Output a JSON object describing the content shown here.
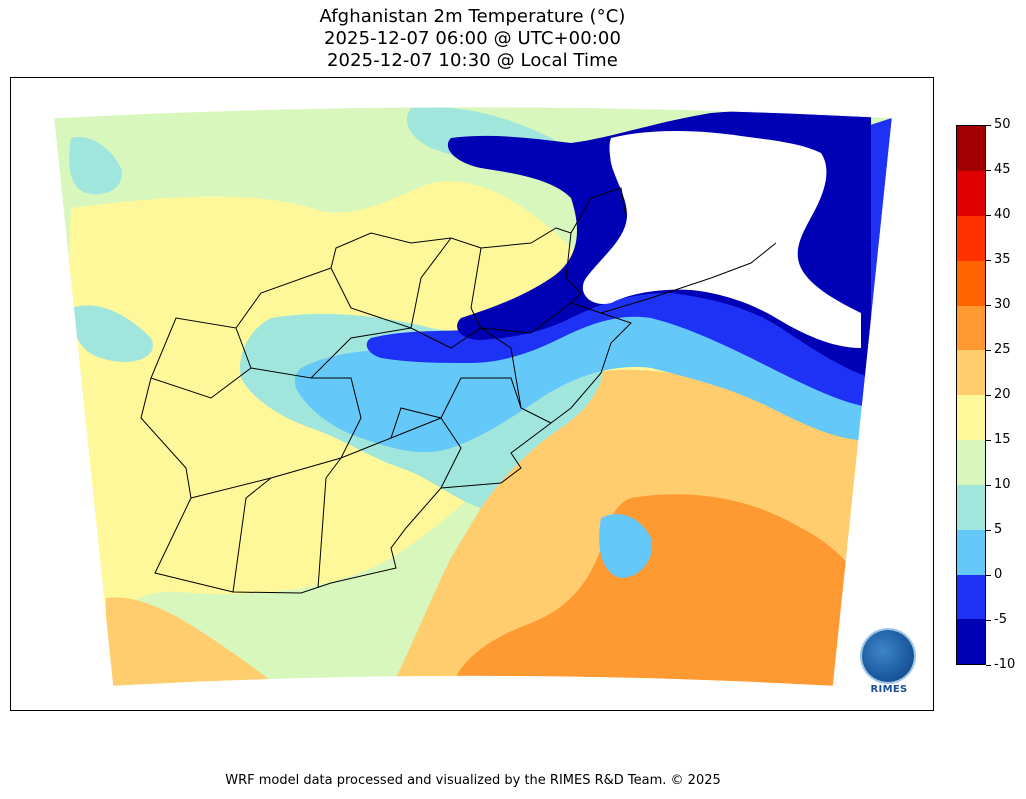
{
  "title": {
    "line1": "Afghanistan 2m Temperature (°C)",
    "line2": "2025-12-07 06:00 @ UTC+00:00",
    "line3": "2025-12-07 10:30 @ Local Time"
  },
  "colorbar": {
    "levels": [
      -10,
      -5,
      0,
      5,
      10,
      15,
      20,
      25,
      30,
      35,
      40,
      45,
      50
    ],
    "tick_labels": [
      "50",
      "45",
      "40",
      "35",
      "30",
      "25",
      "20",
      "15",
      "10",
      "5",
      "0",
      "-5",
      "-10"
    ],
    "colors": [
      "#0000b4",
      "#1e32f5",
      "#64c8f8",
      "#a0e6dc",
      "#d7f7bd",
      "#fff89a",
      "#ffcc6e",
      "#ff9932",
      "#ff6400",
      "#ff3200",
      "#e10000",
      "#a00000"
    ]
  },
  "map": {
    "colors": {
      "cold_white": "#ffffff",
      "minus10": "#0000b4",
      "minus5": "#1e32f5",
      "zero": "#64c8f8",
      "five": "#a0e6dc",
      "ten": "#d7f7bd",
      "fifteen": "#fff89a",
      "twenty": "#ffcc6e",
      "twentyfive": "#ff9932",
      "border": "#000000"
    }
  },
  "logo": {
    "text": "RIMES"
  },
  "footer": "WRF model data processed and visualized by the RIMES R&D Team. © 2025"
}
